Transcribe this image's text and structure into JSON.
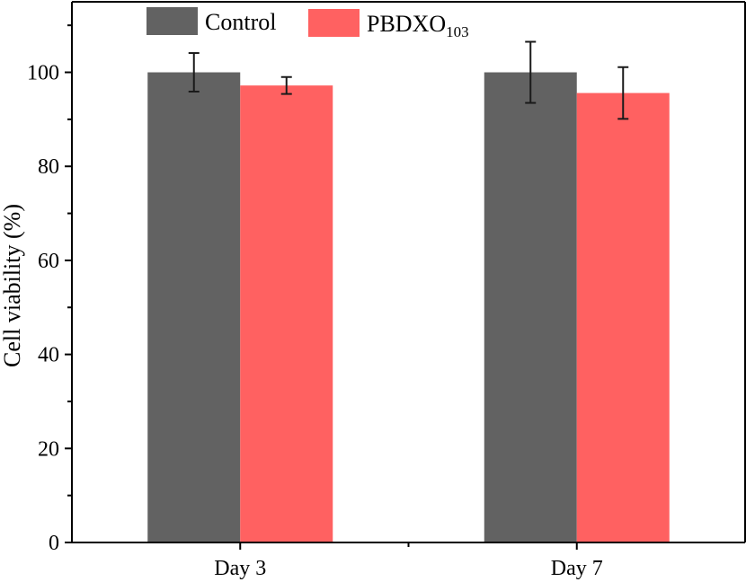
{
  "chart_data": {
    "type": "bar",
    "title": "",
    "xlabel": "",
    "ylabel": "Cell viability (%)",
    "ylim": [
      0,
      115
    ],
    "yticks": [
      0,
      20,
      40,
      60,
      80,
      100
    ],
    "ytick_labels": [
      "0",
      "20",
      "40",
      "60",
      "80",
      "100"
    ],
    "grid": false,
    "legend_position": "top",
    "categories": [
      "Day 3",
      "Day 7"
    ],
    "series": [
      {
        "name": "Control",
        "name_main": "Control",
        "name_sub": "",
        "color": "#626262",
        "values": [
          100,
          100
        ],
        "errors": [
          4.1,
          6.5
        ]
      },
      {
        "name": "PBDXO103",
        "name_main": "PBDXO",
        "name_sub": "103",
        "color": "#ff6161",
        "values": [
          97.2,
          95.6
        ],
        "errors": [
          1.8,
          5.5
        ]
      }
    ]
  }
}
